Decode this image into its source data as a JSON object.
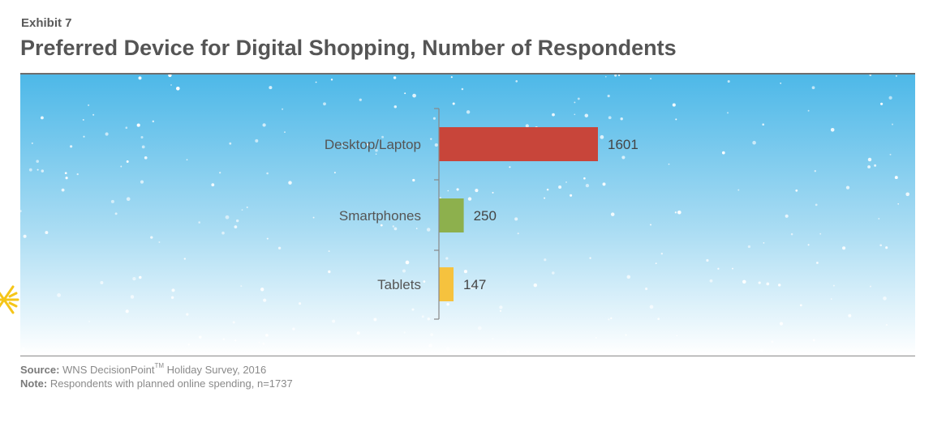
{
  "exhibit_label": "Exhibit 7",
  "chart_data": {
    "type": "bar",
    "orientation": "horizontal",
    "title": "Preferred Device for Digital Shopping, Number of Respondents",
    "categories": [
      "Desktop/Laptop",
      "Smartphones",
      "Tablets"
    ],
    "values": [
      1601,
      250,
      147
    ],
    "data_labels": [
      "1601",
      "250",
      "147"
    ],
    "bar_colors": [
      "#c8453a",
      "#8db04d",
      "#f6c23e"
    ],
    "xlim": [
      0,
      1737
    ],
    "grid": false,
    "legend": "none"
  },
  "footnotes": {
    "source_label": "Source:",
    "source_text": "WNS DecisionPoint",
    "source_tm": "TM",
    "source_text_after": " Holiday Survey, 2016",
    "note_label": "Note:",
    "note_text": "Respondents with planned online spending, n=1737"
  },
  "colors": {
    "sky_top": "#4db8e8",
    "sky_bottom": "#ffffff",
    "axis": "#888888",
    "text": "#555555",
    "snowflake": "#f5c518"
  }
}
